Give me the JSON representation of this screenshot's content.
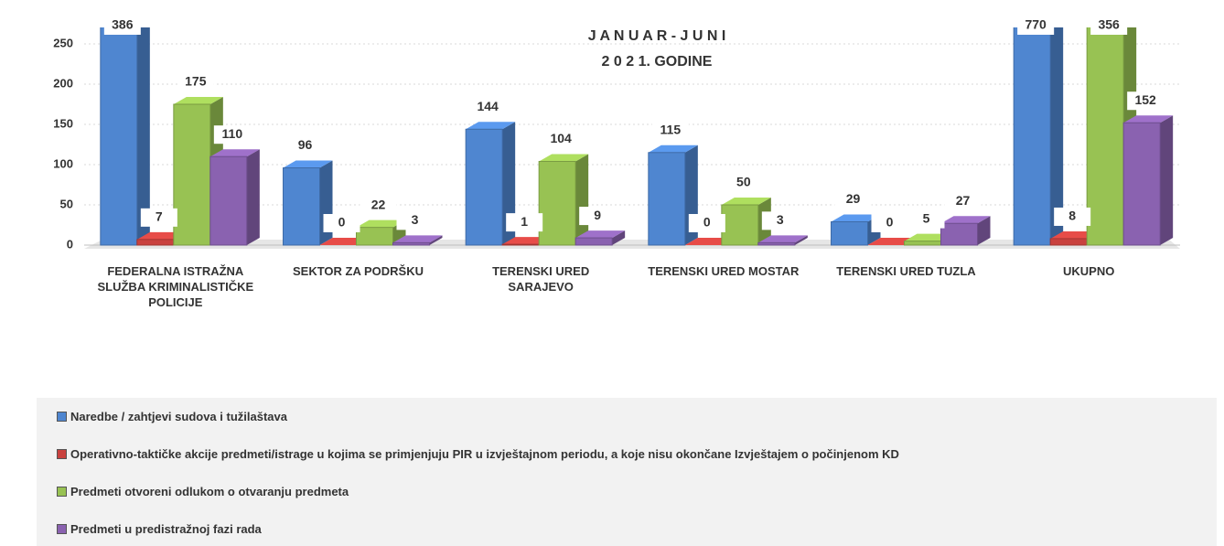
{
  "chart_data": {
    "type": "bar3d",
    "title": "J A N U A R  -  J U N I",
    "subtitle": "2 0 2 1.  GODINE",
    "categories": [
      "FEDERALNA ISTRAŽNA SLUŽBA KRIMINALISTIČKE POLICIJE",
      "SEKTOR ZA PODRŠKU",
      "TERENSKI URED SARAJEVO",
      "TERENSKI URED MOSTAR",
      "TERENSKI URED TUZLA",
      "UKUPNO"
    ],
    "series": [
      {
        "name": "Naredbe / zahtjevi sudova i tužilaštava",
        "color": "#4f86d0",
        "values": [
          386,
          96,
          144,
          115,
          29,
          770
        ]
      },
      {
        "name": "Operativno-taktičke akcije predmeti/istrage u kojima se primjenjuju PIR u izvještajnom periodu, a koje nisu okončane Izvještajem o počinjenom KD",
        "color": "#c9423f",
        "values": [
          7,
          0,
          1,
          0,
          0,
          8
        ]
      },
      {
        "name": "Predmeti otvoreni odlukom o otvaranju predmeta",
        "color": "#98c253",
        "values": [
          175,
          22,
          104,
          50,
          5,
          356
        ]
      },
      {
        "name": "Predmeti u predistražnoj fazi rada",
        "color": "#8a62b0",
        "values": [
          110,
          3,
          9,
          3,
          27,
          152
        ]
      }
    ],
    "ylim": [
      0,
      250
    ],
    "yticks": [
      0,
      50,
      100,
      150,
      200,
      250
    ],
    "grid": true,
    "legend": "bottom"
  }
}
